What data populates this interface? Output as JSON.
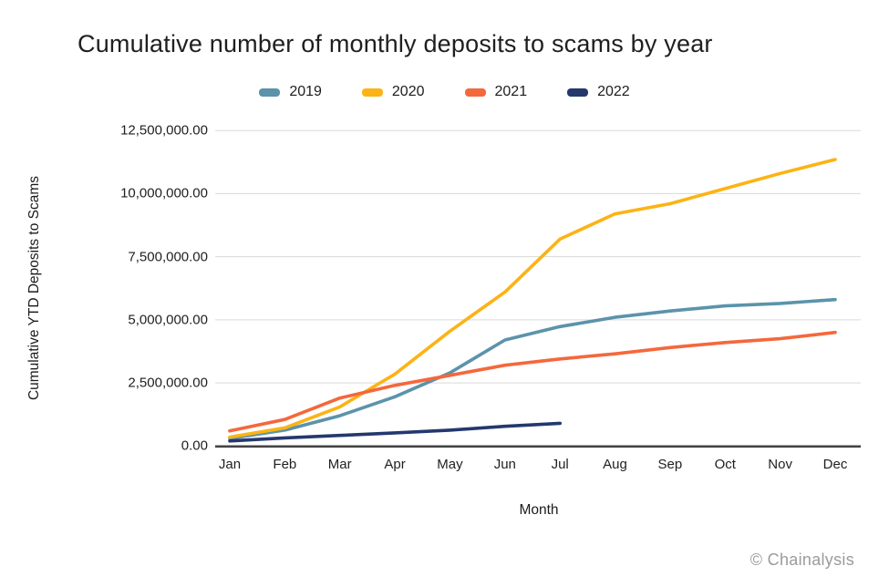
{
  "title": "Cumulative number of monthly deposits to scams by year",
  "footer": {
    "credit": "© Chainalysis"
  },
  "colors": {
    "background": "#FFFFFF",
    "grid": "#D9D9D9",
    "axis": "#444444",
    "text": "#1F1F1F",
    "muted": "#9B9B9B"
  },
  "chart_data": {
    "type": "line",
    "title": "Cumulative number of monthly deposits to scams by year",
    "xlabel": "Month",
    "ylabel": "Cumulative YTD Deposits to Scams",
    "categories": [
      "Jan",
      "Feb",
      "Mar",
      "Apr",
      "May",
      "Jun",
      "Jul",
      "Aug",
      "Sep",
      "Oct",
      "Nov",
      "Dec"
    ],
    "ylim": [
      0,
      12500000
    ],
    "ytick_interval": 2500000,
    "ytick_labels": [
      "0.00",
      "2,500,000.00",
      "5,000,000.00",
      "7,500,000.00",
      "10,000,000.00",
      "12,500,000.00"
    ],
    "grid": true,
    "legend_position": "top",
    "series": [
      {
        "name": "2019",
        "color": "#5B93AB",
        "values": [
          300000,
          630000,
          1200000,
          1950000,
          2900000,
          4200000,
          4730000,
          5100000,
          5350000,
          5550000,
          5650000,
          5800000
        ]
      },
      {
        "name": "2020",
        "color": "#FCB315",
        "values": [
          350000,
          720000,
          1550000,
          2850000,
          4550000,
          6100000,
          8200000,
          9200000,
          9600000,
          10200000,
          10800000,
          11350000
        ]
      },
      {
        "name": "2021",
        "color": "#F4683C",
        "values": [
          600000,
          1050000,
          1900000,
          2400000,
          2800000,
          3200000,
          3450000,
          3650000,
          3900000,
          4100000,
          4250000,
          4500000
        ]
      },
      {
        "name": "2022",
        "color": "#24386D",
        "values": [
          200000,
          320000,
          420000,
          520000,
          630000,
          780000,
          900000
        ]
      }
    ]
  }
}
